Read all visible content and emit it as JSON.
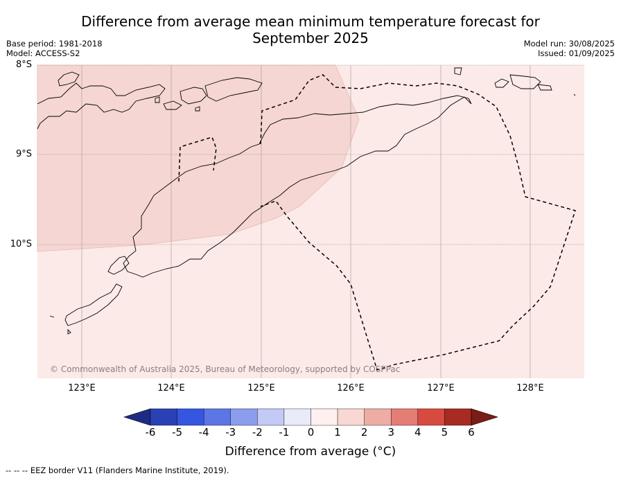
{
  "title_line1": "Difference from average mean minimum temperature forecast for",
  "title_line2": "September 2025",
  "meta_left": {
    "base_period": "Base period: 1981-2018",
    "model": "Model: ACCESS-S2"
  },
  "meta_right": {
    "model_run": "Model run: 30/08/2025",
    "issued": "Issued: 01/09/2025"
  },
  "map": {
    "lat_labels": [
      "8°S",
      "9°S",
      "10°S"
    ],
    "lon_labels": [
      "123°E",
      "124°E",
      "125°E",
      "126°E",
      "127°E",
      "128°E"
    ],
    "copyright": "© Commonwealth of Australia 2025, Bureau of Meteorology, supported by COSPPac",
    "fill_colors": {
      "band_0_to_1": "#fbeae7",
      "band_1_to_2": "#f5d6d2"
    }
  },
  "colorbar": {
    "ticks": [
      "-6",
      "-5",
      "-4",
      "-3",
      "-2",
      "-1",
      "0",
      "1",
      "2",
      "3",
      "4",
      "5",
      "6"
    ],
    "colors": [
      "#1e2b82",
      "#2a41b5",
      "#3556e0",
      "#5c76e6",
      "#8b9ded",
      "#c2caf5",
      "#e9ebfb",
      "#fdf0ee",
      "#f7d8d3",
      "#efaca5",
      "#e47d74",
      "#d84a40",
      "#a82b22",
      "#7a1d16"
    ],
    "label": "Difference from average (°C)"
  },
  "footnote": "--  --  -- EEZ border V11 (Flanders Marine Institute, 2019)."
}
